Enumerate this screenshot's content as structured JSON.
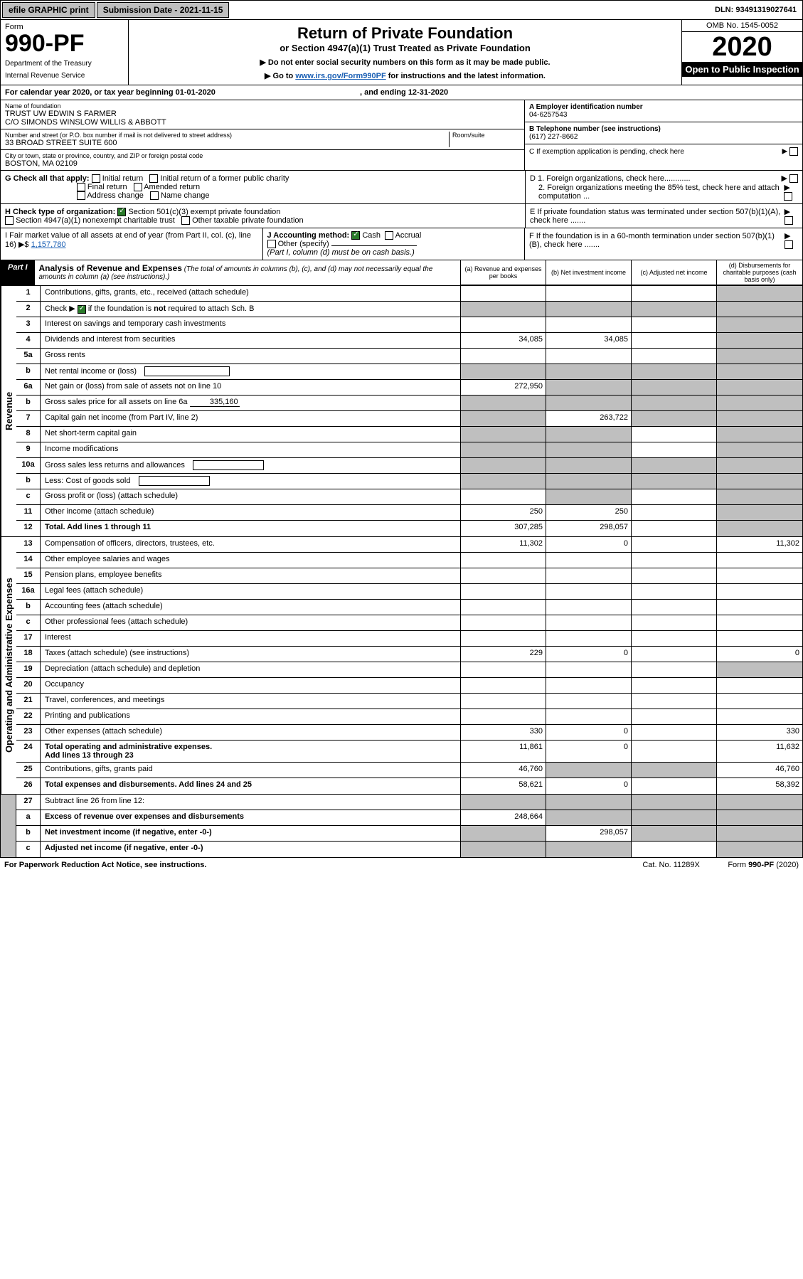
{
  "top": {
    "efile": "efile GRAPHIC print",
    "submission": "Submission Date - 2021-11-15",
    "dln": "DLN: 93491319027641"
  },
  "header": {
    "form": "Form",
    "formno": "990-PF",
    "dept": "Department of the Treasury",
    "irs": "Internal Revenue Service",
    "title": "Return of Private Foundation",
    "subtitle": "or Section 4947(a)(1) Trust Treated as Private Foundation",
    "note1": "▶ Do not enter social security numbers on this form as it may be made public.",
    "note2": "▶ Go to ",
    "note2link": "www.irs.gov/Form990PF",
    "note2b": " for instructions and the latest information.",
    "omb": "OMB No. 1545-0052",
    "year": "2020",
    "inspect": "Open to Public Inspection"
  },
  "calendar": {
    "text": "For calendar year 2020, or tax year beginning 01-01-2020",
    "ending": ", and ending 12-31-2020"
  },
  "info": {
    "name_label": "Name of foundation",
    "name1": "TRUST UW EDWIN S FARMER",
    "name2": "C/O SIMONDS WINSLOW WILLIS & ABBOTT",
    "addr_label": "Number and street (or P.O. box number if mail is not delivered to street address)",
    "room_label": "Room/suite",
    "addr": "33 BROAD STREET SUITE 600",
    "city_label": "City or town, state or province, country, and ZIP or foreign postal code",
    "city": "BOSTON, MA  02109",
    "a_label": "A Employer identification number",
    "a_val": "04-6257543",
    "b_label": "B Telephone number (see instructions)",
    "b_val": "(617) 227-8662",
    "c_label": "C If exemption application is pending, check here",
    "d1": "D 1. Foreign organizations, check here............",
    "d2": "2. Foreign organizations meeting the 85% test, check here and attach computation ...",
    "e": "E  If private foundation status was terminated under section 507(b)(1)(A), check here .......",
    "f": "F  If the foundation is in a 60-month termination under section 507(b)(1)(B), check here .......",
    "g_label": "G Check all that apply:",
    "g_opts": [
      "Initial return",
      "Initial return of a former public charity",
      "Final return",
      "Amended return",
      "Address change",
      "Name change"
    ],
    "h_label": "H Check type of organization:",
    "h_opt1": "Section 501(c)(3) exempt private foundation",
    "h_opt2": "Section 4947(a)(1) nonexempt charitable trust",
    "h_opt3": "Other taxable private foundation",
    "i_label": "I Fair market value of all assets at end of year (from Part II, col. (c), line 16)",
    "i_val": "1,157,780",
    "j_label": "J Accounting method:",
    "j_opt1": "Cash",
    "j_opt2": "Accrual",
    "j_opt3": "Other (specify)",
    "j_note": "(Part I, column (d) must be on cash basis.)"
  },
  "part1": {
    "tab": "Part I",
    "title": "Analysis of Revenue and Expenses",
    "note": "(The total of amounts in columns (b), (c), and (d) may not necessarily equal the amounts in column (a) (see instructions).)",
    "cols": {
      "a": "(a) Revenue and expenses per books",
      "b": "(b) Net investment income",
      "c": "(c) Adjusted net income",
      "d": "(d) Disbursements for charitable purposes (cash basis only)"
    }
  },
  "sides": {
    "revenue": "Revenue",
    "expenses": "Operating and Administrative Expenses"
  },
  "lines": [
    {
      "n": "1",
      "d": "",
      "a": "",
      "b": "",
      "c": "",
      "shade_c": true,
      "shade_d": true
    },
    {
      "n": "2",
      "d": "",
      "a": "",
      "b": "",
      "c": "",
      "shade_all": true
    },
    {
      "n": "3",
      "d": "",
      "a": "",
      "b": "",
      "c": "",
      "shade_d": true
    },
    {
      "n": "4",
      "d": "",
      "a": "34,085",
      "b": "34,085",
      "c": "",
      "shade_d": true
    },
    {
      "n": "5a",
      "d": "",
      "a": "",
      "b": "",
      "c": "",
      "shade_d": true
    },
    {
      "n": "b",
      "d": "",
      "a": "",
      "b": "",
      "c": "",
      "shade_all": true,
      "inline_box": true
    },
    {
      "n": "6a",
      "d": "",
      "a": "272,950",
      "b": "",
      "c": "",
      "shade_bcd": true
    },
    {
      "n": "b",
      "d": "",
      "inline": "335,160",
      "a": "",
      "b": "",
      "c": "",
      "shade_all": true
    },
    {
      "n": "7",
      "d": "",
      "a": "",
      "b": "263,722",
      "c": "",
      "shade_a": true,
      "shade_cd": true
    },
    {
      "n": "8",
      "d": "",
      "a": "",
      "b": "",
      "c": "",
      "shade_ab": true,
      "shade_d": true
    },
    {
      "n": "9",
      "d": "",
      "a": "",
      "b": "",
      "c": "",
      "shade_ab": true,
      "shade_d": true
    },
    {
      "n": "10a",
      "d": "",
      "a": "",
      "b": "",
      "c": "",
      "shade_all": true,
      "inline_box": true
    },
    {
      "n": "b",
      "d": "",
      "a": "",
      "b": "",
      "c": "",
      "shade_all": true,
      "inline_box": true
    },
    {
      "n": "c",
      "d": "",
      "a": "",
      "b": "",
      "c": "",
      "shade_b": true,
      "shade_d": true
    },
    {
      "n": "11",
      "d": "",
      "a": "250",
      "b": "250",
      "c": "",
      "shade_d": true
    },
    {
      "n": "12",
      "d": "",
      "a": "307,285",
      "b": "298,057",
      "c": "",
      "bold": true,
      "shade_d": true
    }
  ],
  "exp_lines": [
    {
      "n": "13",
      "d": "11,302",
      "a": "11,302",
      "b": "0",
      "c": ""
    },
    {
      "n": "14",
      "d": "",
      "a": "",
      "b": "",
      "c": ""
    },
    {
      "n": "15",
      "d": "",
      "a": "",
      "b": "",
      "c": ""
    },
    {
      "n": "16a",
      "d": "",
      "a": "",
      "b": "",
      "c": ""
    },
    {
      "n": "b",
      "d": "",
      "a": "",
      "b": "",
      "c": ""
    },
    {
      "n": "c",
      "d": "",
      "a": "",
      "b": "",
      "c": ""
    },
    {
      "n": "17",
      "d": "",
      "a": "",
      "b": "",
      "c": ""
    },
    {
      "n": "18",
      "d": "0",
      "a": "229",
      "b": "0",
      "c": ""
    },
    {
      "n": "19",
      "d": "",
      "a": "",
      "b": "",
      "c": "",
      "shade_d": true
    },
    {
      "n": "20",
      "d": "",
      "a": "",
      "b": "",
      "c": ""
    },
    {
      "n": "21",
      "d": "",
      "a": "",
      "b": "",
      "c": ""
    },
    {
      "n": "22",
      "d": "",
      "a": "",
      "b": "",
      "c": ""
    },
    {
      "n": "23",
      "d": "330",
      "a": "330",
      "b": "0",
      "c": ""
    },
    {
      "n": "24",
      "d": "11,632",
      "a": "11,861",
      "b": "0",
      "c": "",
      "bold": true
    },
    {
      "n": "25",
      "d": "46,760",
      "a": "46,760",
      "b": "",
      "c": "",
      "shade_bc": true
    },
    {
      "n": "26",
      "d": "58,392",
      "a": "58,621",
      "b": "0",
      "c": "",
      "bold": true
    }
  ],
  "bottom_lines": [
    {
      "n": "27",
      "d": "",
      "a": "",
      "b": "",
      "c": "",
      "shade_all": true
    },
    {
      "n": "a",
      "d": "",
      "a": "248,664",
      "b": "",
      "c": "",
      "bold": true,
      "shade_bcd": true
    },
    {
      "n": "b",
      "d": "",
      "a": "",
      "b": "298,057",
      "c": "",
      "bold": true,
      "shade_a": true,
      "shade_cd": true
    },
    {
      "n": "c",
      "d": "",
      "a": "",
      "b": "",
      "c": "",
      "bold": true,
      "shade_ab": true,
      "shade_d": true
    }
  ],
  "foot": {
    "left": "For Paperwork Reduction Act Notice, see instructions.",
    "mid": "Cat. No. 11289X",
    "right": "Form 990-PF (2020)"
  },
  "colors": {
    "shade": "#bfbfbf",
    "link": "#1a5fb4",
    "check": "#2a7a2a"
  }
}
